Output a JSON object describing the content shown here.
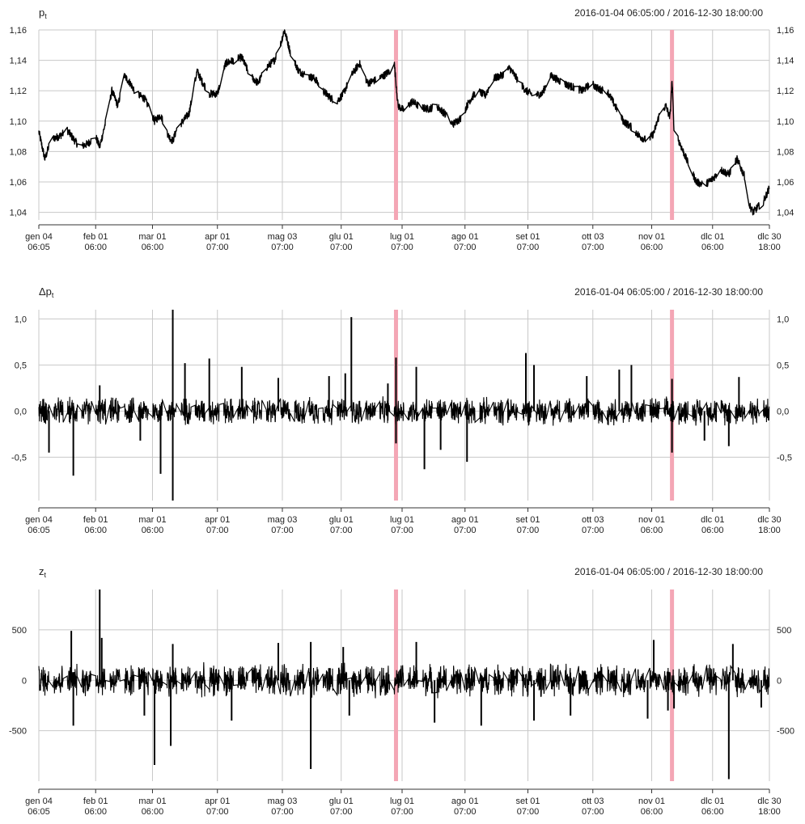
{
  "chart_data": [
    {
      "type": "line",
      "title": "p",
      "title_sub": "t",
      "title_prefix": "",
      "date_range": "2016-01-04 06:05:00 / 2016-12-30 18:00:00",
      "y_ticks": [
        "1,04",
        "1,06",
        "1,08",
        "1,10",
        "1,12",
        "1,14",
        "1,16"
      ],
      "ylim": [
        1.035,
        1.16
      ],
      "x_ticks": [
        [
          "gen 04",
          "06:05"
        ],
        [
          "feb 01",
          "06:00"
        ],
        [
          "mar 01",
          "06:00"
        ],
        [
          "apr 01",
          "07:00"
        ],
        [
          "mag 03",
          "07:00"
        ],
        [
          "glu 01",
          "07:00"
        ],
        [
          "lug 01",
          "07:00"
        ],
        [
          "ago 01",
          "07:00"
        ],
        [
          "set 01",
          "07:00"
        ],
        [
          "ott 03",
          "07:00"
        ],
        [
          "nov 01",
          "06:00"
        ],
        [
          "dlc 01",
          "06:00"
        ],
        [
          "dlc 30",
          "18:00"
        ]
      ],
      "highlight_days": [
        176,
        312
      ],
      "highlight_color": "#f4a6b5",
      "series": [
        {
          "x_days": [
            0,
            3,
            6,
            10,
            14,
            20,
            24,
            28,
            30,
            33,
            36,
            39,
            42,
            45,
            48,
            52,
            55,
            57,
            60,
            64,
            66,
            68,
            71,
            74,
            78,
            80,
            84,
            88,
            92,
            96,
            100,
            104,
            108,
            112,
            116,
            119,
            121,
            124,
            128,
            132,
            136,
            140,
            144,
            147,
            150,
            154,
            158,
            162,
            166,
            170,
            173,
            175,
            176,
            177,
            180,
            184,
            188,
            192,
            196,
            200,
            204,
            208,
            212,
            216,
            220,
            224,
            228,
            232,
            236,
            240,
            244,
            248,
            252,
            256,
            260,
            264,
            268,
            272,
            276,
            280,
            284,
            288,
            292,
            296,
            300,
            303,
            306,
            309,
            311,
            312,
            313,
            316,
            320,
            324,
            328,
            332,
            336,
            340,
            344,
            348,
            350,
            352,
            354,
            357,
            360
          ],
          "values": [
            1.093,
            1.075,
            1.088,
            1.09,
            1.094,
            1.083,
            1.085,
            1.09,
            1.083,
            1.1,
            1.12,
            1.11,
            1.13,
            1.125,
            1.118,
            1.115,
            1.107,
            1.1,
            1.104,
            1.09,
            1.087,
            1.095,
            1.1,
            1.105,
            1.133,
            1.127,
            1.118,
            1.118,
            1.138,
            1.14,
            1.142,
            1.13,
            1.125,
            1.135,
            1.14,
            1.15,
            1.16,
            1.145,
            1.133,
            1.13,
            1.128,
            1.12,
            1.115,
            1.113,
            1.118,
            1.13,
            1.138,
            1.125,
            1.127,
            1.13,
            1.133,
            1.14,
            1.125,
            1.11,
            1.107,
            1.113,
            1.109,
            1.108,
            1.11,
            1.105,
            1.098,
            1.102,
            1.113,
            1.12,
            1.117,
            1.128,
            1.13,
            1.135,
            1.127,
            1.12,
            1.117,
            1.118,
            1.13,
            1.127,
            1.124,
            1.122,
            1.12,
            1.125,
            1.121,
            1.12,
            1.11,
            1.1,
            1.096,
            1.09,
            1.087,
            1.092,
            1.105,
            1.11,
            1.102,
            1.127,
            1.095,
            1.085,
            1.072,
            1.06,
            1.058,
            1.062,
            1.068,
            1.065,
            1.075,
            1.063,
            1.045,
            1.04,
            1.043,
            1.047,
            1.056
          ]
        }
      ]
    },
    {
      "type": "line",
      "title": "p",
      "title_sub": "t",
      "title_prefix": "Δ",
      "date_range": "2016-01-04 06:05:00 / 2016-12-30 18:00:00",
      "y_ticks": [
        "-0,5",
        "0,0",
        "0,5",
        "1,0"
      ],
      "ylim": [
        -0.97,
        1.1
      ],
      "x_ticks": [
        [
          "gen 04",
          "06:05"
        ],
        [
          "feb 01",
          "06:00"
        ],
        [
          "mar 01",
          "06:00"
        ],
        [
          "apr 01",
          "07:00"
        ],
        [
          "mag 03",
          "07:00"
        ],
        [
          "glu 01",
          "07:00"
        ],
        [
          "lug 01",
          "07:00"
        ],
        [
          "ago 01",
          "07:00"
        ],
        [
          "set 01",
          "07:00"
        ],
        [
          "ott 03",
          "07:00"
        ],
        [
          "nov 01",
          "06:00"
        ],
        [
          "dlc 01",
          "06:00"
        ],
        [
          "dlc 30",
          "18:00"
        ]
      ],
      "highlight_days": [
        176,
        312
      ],
      "highlight_color": "#f4a6b5",
      "series": [
        {
          "noise_amplitude": 0.12,
          "spikes": [
            {
              "x": 5,
              "y": -0.45
            },
            {
              "x": 17,
              "y": -0.7
            },
            {
              "x": 30,
              "y": 0.28
            },
            {
              "x": 50,
              "y": -0.32
            },
            {
              "x": 60,
              "y": -0.68
            },
            {
              "x": 66,
              "y": 1.1
            },
            {
              "x": 66,
              "y": -0.97
            },
            {
              "x": 72,
              "y": 0.52
            },
            {
              "x": 84,
              "y": 0.57
            },
            {
              "x": 100,
              "y": 0.48
            },
            {
              "x": 118,
              "y": 0.36
            },
            {
              "x": 143,
              "y": 0.38
            },
            {
              "x": 151,
              "y": 0.41
            },
            {
              "x": 154,
              "y": 1.02
            },
            {
              "x": 172,
              "y": 0.3
            },
            {
              "x": 176,
              "y": 0.58
            },
            {
              "x": 176,
              "y": -0.35
            },
            {
              "x": 186,
              "y": 0.48
            },
            {
              "x": 190,
              "y": -0.63
            },
            {
              "x": 198,
              "y": -0.42
            },
            {
              "x": 211,
              "y": -0.55
            },
            {
              "x": 240,
              "y": 0.63
            },
            {
              "x": 244,
              "y": 0.5
            },
            {
              "x": 270,
              "y": 0.38
            },
            {
              "x": 286,
              "y": 0.45
            },
            {
              "x": 292,
              "y": 0.5
            },
            {
              "x": 312,
              "y": 0.35
            },
            {
              "x": 312,
              "y": -0.45
            },
            {
              "x": 328,
              "y": -0.32
            },
            {
              "x": 340,
              "y": -0.38
            },
            {
              "x": 345,
              "y": 0.37
            }
          ]
        }
      ]
    },
    {
      "type": "line",
      "title": "z",
      "title_sub": "t",
      "title_prefix": "",
      "date_range": "2016-01-04 06:05:00 / 2016-12-30 18:00:00",
      "y_ticks": [
        "-500",
        "0",
        "500"
      ],
      "ylim": [
        -1000,
        900
      ],
      "x_ticks": [
        [
          "gen 04",
          "06:05"
        ],
        [
          "feb 01",
          "06:00"
        ],
        [
          "mar 01",
          "06:00"
        ],
        [
          "apr 01",
          "07:00"
        ],
        [
          "mag 03",
          "07:00"
        ],
        [
          "glu 01",
          "07:00"
        ],
        [
          "lug 01",
          "07:00"
        ],
        [
          "ago 01",
          "07:00"
        ],
        [
          "set 01",
          "07:00"
        ],
        [
          "ott 03",
          "07:00"
        ],
        [
          "nov 01",
          "06:00"
        ],
        [
          "dlc 01",
          "06:00"
        ],
        [
          "dlc 30",
          "18:00"
        ]
      ],
      "highlight_days": [
        176,
        312
      ],
      "highlight_color": "#f4a6b5",
      "series": [
        {
          "noise_amplitude": 130,
          "spikes": [
            {
              "x": 16,
              "y": 490
            },
            {
              "x": 17,
              "y": -450
            },
            {
              "x": 30,
              "y": 900
            },
            {
              "x": 31,
              "y": 420
            },
            {
              "x": 52,
              "y": -350
            },
            {
              "x": 57,
              "y": -840
            },
            {
              "x": 65,
              "y": -650
            },
            {
              "x": 66,
              "y": 360
            },
            {
              "x": 95,
              "y": -400
            },
            {
              "x": 118,
              "y": 370
            },
            {
              "x": 134,
              "y": 380
            },
            {
              "x": 134,
              "y": -880
            },
            {
              "x": 150,
              "y": 330
            },
            {
              "x": 153,
              "y": -350
            },
            {
              "x": 186,
              "y": 380
            },
            {
              "x": 195,
              "y": -420
            },
            {
              "x": 218,
              "y": -450
            },
            {
              "x": 244,
              "y": -400
            },
            {
              "x": 262,
              "y": -350
            },
            {
              "x": 300,
              "y": -380
            },
            {
              "x": 303,
              "y": 400
            },
            {
              "x": 310,
              "y": -300
            },
            {
              "x": 313,
              "y": -280
            },
            {
              "x": 340,
              "y": -980
            },
            {
              "x": 342,
              "y": 360
            },
            {
              "x": 356,
              "y": -270
            }
          ]
        }
      ]
    }
  ]
}
